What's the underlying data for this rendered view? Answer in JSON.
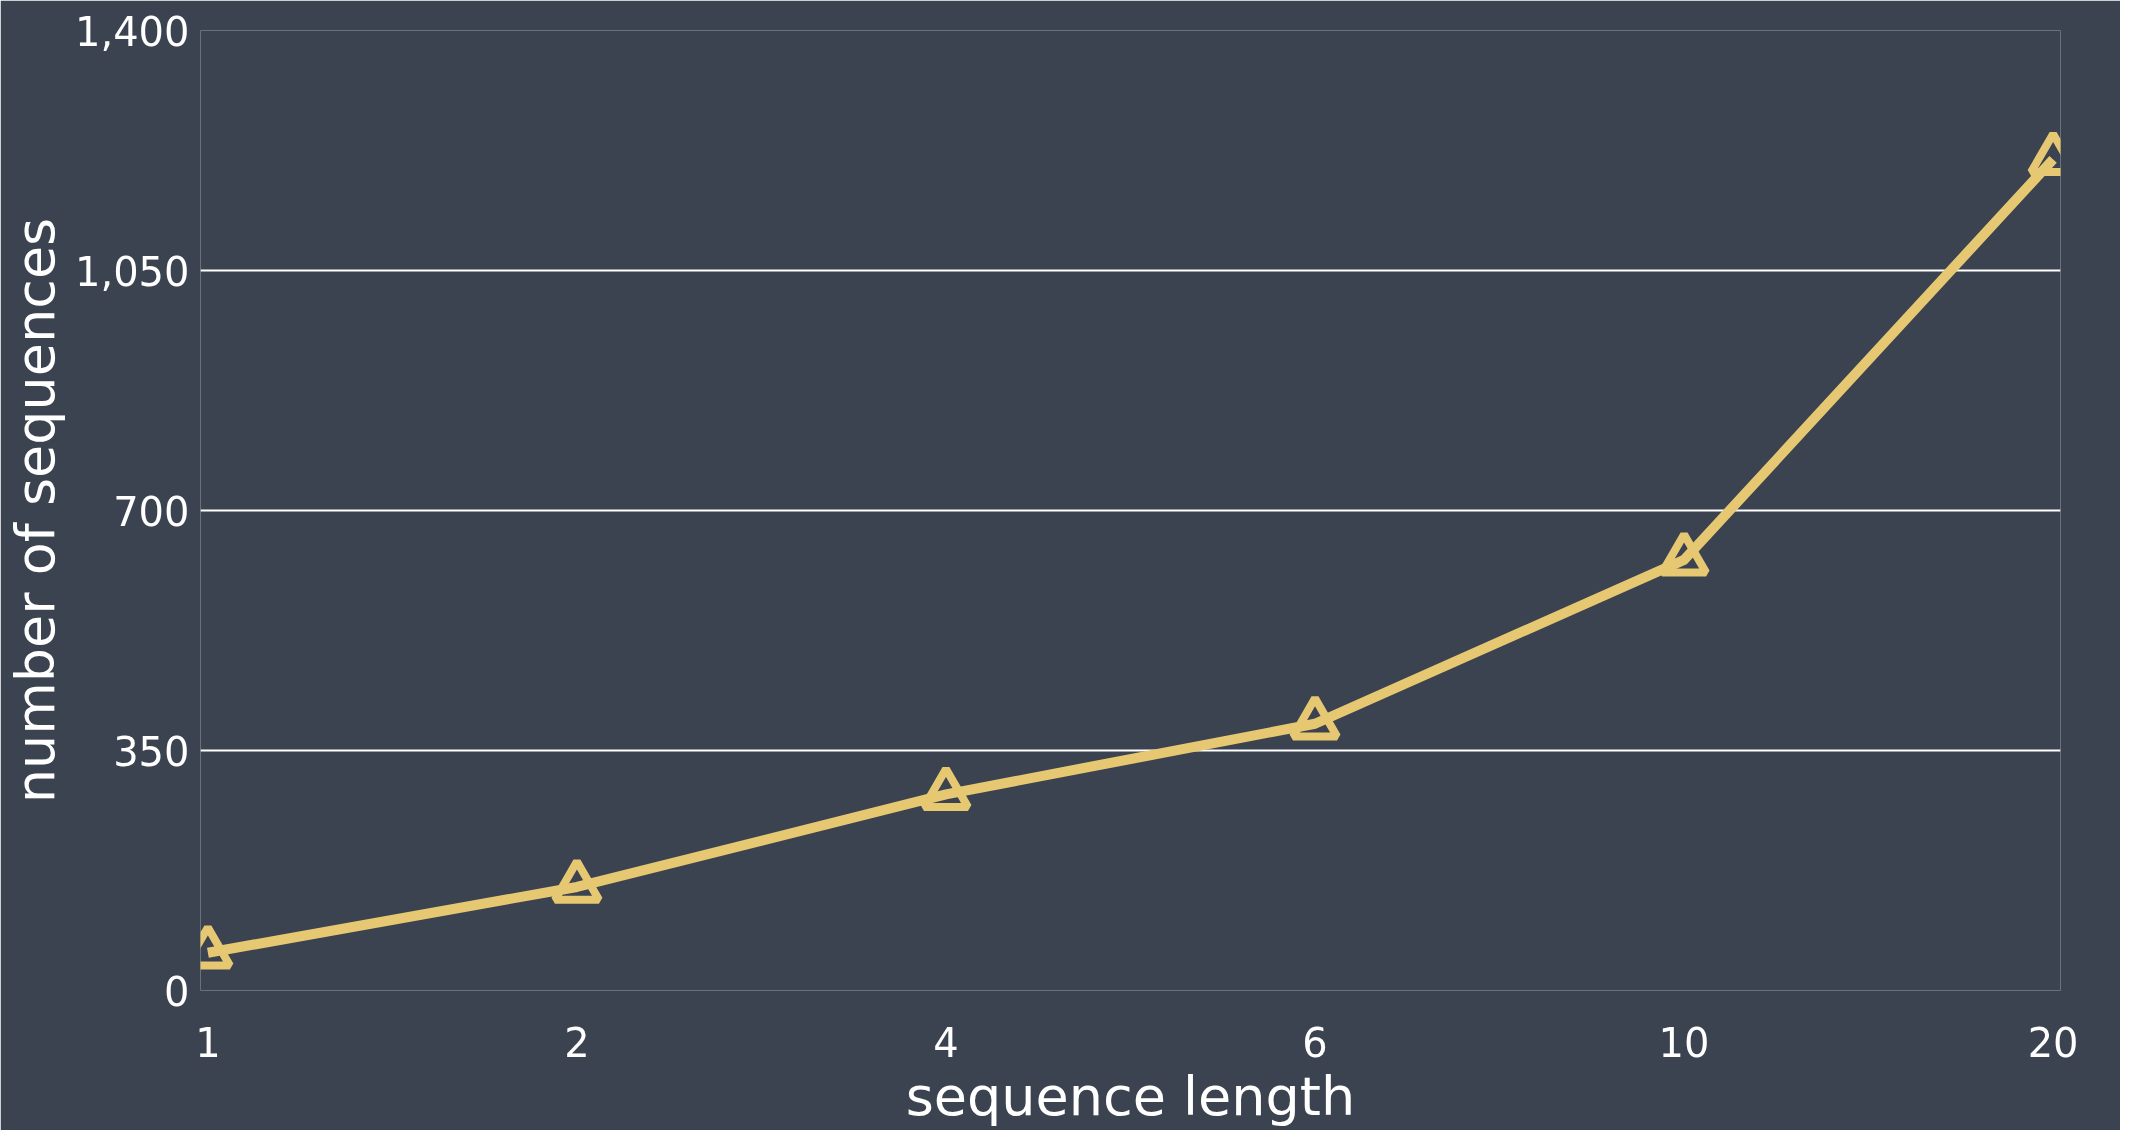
{
  "chart_data": {
    "type": "line",
    "xlabel": "sequence length",
    "ylabel": "number of sequences",
    "categories": [
      "1",
      "2",
      "4",
      "6",
      "10",
      "20"
    ],
    "series": [
      {
        "color": "#e6c872",
        "values": [
          55,
          151,
          286,
          389,
          628,
          1212
        ]
      }
    ],
    "ylim": [
      0,
      1400
    ],
    "yticks": [
      0,
      {
        "value": 350,
        "label": "350"
      },
      {
        "value": 700,
        "label": "700"
      },
      {
        "value": 1050,
        "label": "1,050"
      },
      {
        "value": 1400,
        "label": "1,400"
      }
    ],
    "grid": "y",
    "marker": "triangle",
    "line_style": "solid"
  }
}
